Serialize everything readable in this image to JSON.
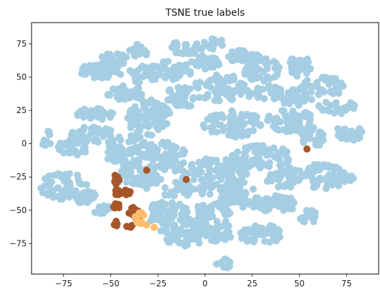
{
  "chart_data": {
    "type": "scatter",
    "title": "TSNE true labels",
    "xlabel": "",
    "ylabel": "",
    "xlim": [
      -92,
      92
    ],
    "ylim": [
      -98,
      91
    ],
    "xticks": [
      -75,
      -50,
      -25,
      0,
      25,
      50,
      75
    ],
    "yticks": [
      -75,
      -50,
      -25,
      0,
      25,
      50,
      75
    ],
    "grid": false,
    "legend": "none",
    "series": [
      {
        "color": "#a6cee3",
        "clusters": [
          {
            "cx": -84,
            "cy": 4,
            "rx": 3,
            "ry": 6,
            "n": 12
          },
          {
            "cx": -70,
            "cy": -3,
            "rx": 8,
            "ry": 7,
            "n": 35
          },
          {
            "cx": -60,
            "cy": 7,
            "rx": 12,
            "ry": 6,
            "n": 40
          },
          {
            "cx": -74,
            "cy": -32,
            "rx": 14,
            "ry": 10,
            "n": 55
          },
          {
            "cx": -64,
            "cy": -40,
            "rx": 6,
            "ry": 5,
            "n": 18
          },
          {
            "cx": -55,
            "cy": -48,
            "rx": 5,
            "ry": 5,
            "n": 14
          },
          {
            "cx": -58,
            "cy": 22,
            "rx": 10,
            "ry": 5,
            "n": 30
          },
          {
            "cx": -55,
            "cy": 55,
            "rx": 12,
            "ry": 6,
            "n": 45
          },
          {
            "cx": -48,
            "cy": 63,
            "rx": 8,
            "ry": 5,
            "n": 25
          },
          {
            "cx": -35,
            "cy": 70,
            "rx": 5,
            "ry": 5,
            "n": 20
          },
          {
            "cx": -33,
            "cy": 52,
            "rx": 8,
            "ry": 7,
            "n": 30
          },
          {
            "cx": -42,
            "cy": 38,
            "rx": 10,
            "ry": 6,
            "n": 35
          },
          {
            "cx": -30,
            "cy": 20,
            "rx": 12,
            "ry": 14,
            "n": 90
          },
          {
            "cx": -40,
            "cy": -5,
            "rx": 14,
            "ry": 12,
            "n": 80
          },
          {
            "cx": -35,
            "cy": -25,
            "rx": 12,
            "ry": 10,
            "n": 55
          },
          {
            "cx": -20,
            "cy": -10,
            "rx": 10,
            "ry": 12,
            "n": 60
          },
          {
            "cx": -18,
            "cy": 55,
            "rx": 12,
            "ry": 7,
            "n": 45
          },
          {
            "cx": -10,
            "cy": 72,
            "rx": 10,
            "ry": 5,
            "n": 30
          },
          {
            "cx": -12,
            "cy": 35,
            "rx": 10,
            "ry": 8,
            "n": 40
          },
          {
            "cx": 0,
            "cy": 60,
            "rx": 8,
            "ry": 6,
            "n": 30
          },
          {
            "cx": 8,
            "cy": 42,
            "rx": 14,
            "ry": 10,
            "n": 65
          },
          {
            "cx": 5,
            "cy": 75,
            "rx": 6,
            "ry": 4,
            "n": 18
          },
          {
            "cx": 20,
            "cy": 65,
            "rx": 8,
            "ry": 6,
            "n": 28
          },
          {
            "cx": 30,
            "cy": 56,
            "rx": 10,
            "ry": 10,
            "n": 45
          },
          {
            "cx": 32,
            "cy": 38,
            "rx": 10,
            "ry": 6,
            "n": 30
          },
          {
            "cx": 15,
            "cy": 15,
            "rx": 16,
            "ry": 10,
            "n": 80
          },
          {
            "cx": 45,
            "cy": 18,
            "rx": 12,
            "ry": 9,
            "n": 50
          },
          {
            "cx": 48,
            "cy": 35,
            "rx": 9,
            "ry": 7,
            "n": 35
          },
          {
            "cx": 50,
            "cy": 58,
            "rx": 6,
            "ry": 8,
            "n": 30
          },
          {
            "cx": 63,
            "cy": 43,
            "rx": 12,
            "ry": 7,
            "n": 40
          },
          {
            "cx": 70,
            "cy": 28,
            "rx": 10,
            "ry": 6,
            "n": 30
          },
          {
            "cx": 76,
            "cy": 8,
            "rx": 8,
            "ry": 6,
            "n": 30
          },
          {
            "cx": 57,
            "cy": 5,
            "rx": 6,
            "ry": 8,
            "n": 25
          },
          {
            "cx": 62,
            "cy": -25,
            "rx": 12,
            "ry": 10,
            "n": 55
          },
          {
            "cx": 73,
            "cy": -25,
            "rx": 6,
            "ry": 4,
            "n": 15
          },
          {
            "cx": 55,
            "cy": -55,
            "rx": 5,
            "ry": 5,
            "n": 15
          },
          {
            "cx": 38,
            "cy": -45,
            "rx": 14,
            "ry": 6,
            "n": 40
          },
          {
            "cx": 30,
            "cy": -68,
            "rx": 12,
            "ry": 7,
            "n": 45
          },
          {
            "cx": 20,
            "cy": -40,
            "rx": 12,
            "ry": 8,
            "n": 40
          },
          {
            "cx": 5,
            "cy": -25,
            "rx": 18,
            "ry": 14,
            "n": 110
          },
          {
            "cx": 30,
            "cy": -10,
            "rx": 16,
            "ry": 9,
            "n": 70
          },
          {
            "cx": 42,
            "cy": -25,
            "rx": 10,
            "ry": 8,
            "n": 40
          },
          {
            "cx": 0,
            "cy": -65,
            "rx": 16,
            "ry": 10,
            "n": 70
          },
          {
            "cx": 5,
            "cy": -50,
            "rx": 10,
            "ry": 6,
            "n": 30
          },
          {
            "cx": 10,
            "cy": -90,
            "rx": 4,
            "ry": 4,
            "n": 10
          },
          {
            "cx": -20,
            "cy": -55,
            "rx": 12,
            "ry": 12,
            "n": 60
          },
          {
            "cx": -12,
            "cy": -72,
            "rx": 10,
            "ry": 6,
            "n": 30
          },
          {
            "cx": -15,
            "cy": -35,
            "rx": 8,
            "ry": 6,
            "n": 25
          }
        ]
      },
      {
        "color": "#a65628",
        "clusters": [
          {
            "cx": -47,
            "cy": -27,
            "rx": 2,
            "ry": 4,
            "n": 10
          },
          {
            "cx": -44,
            "cy": -36,
            "rx": 5,
            "ry": 3,
            "n": 14
          },
          {
            "cx": -47,
            "cy": -46,
            "rx": 2,
            "ry": 3,
            "n": 6
          },
          {
            "cx": -46,
            "cy": -60,
            "rx": 3,
            "ry": 2,
            "n": 7
          },
          {
            "cx": -37,
            "cy": -52,
            "rx": 4,
            "ry": 5,
            "n": 12
          },
          {
            "cx": -40,
            "cy": -61,
            "rx": 2,
            "ry": 2,
            "n": 4
          }
        ],
        "points": [
          [
            -31,
            -20
          ],
          [
            -10,
            -27
          ],
          [
            54,
            -4
          ]
        ]
      },
      {
        "color": "#fdbf6f",
        "clusters": [
          {
            "cx": -35,
            "cy": -54,
            "rx": 3,
            "ry": 3,
            "n": 6
          },
          {
            "cx": -35,
            "cy": -60,
            "rx": 2,
            "ry": 2,
            "n": 3
          }
        ],
        "points": [
          [
            -27,
            -63
          ],
          [
            -31,
            -61
          ]
        ]
      }
    ]
  }
}
